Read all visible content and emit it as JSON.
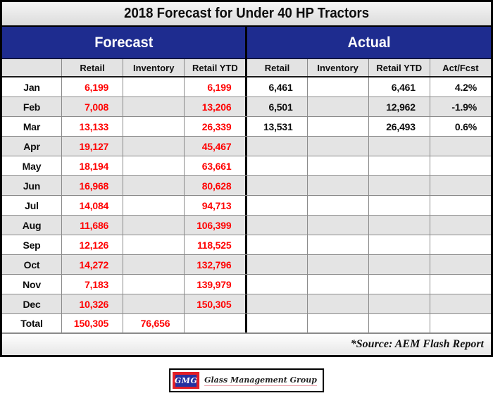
{
  "title": "2018 Forecast for Under 40 HP Tractors",
  "groups": {
    "forecast": "Forecast",
    "actual": "Actual"
  },
  "table": {
    "header": [
      "",
      "Retail",
      "Inventory",
      "Retail YTD",
      "Retail",
      "Inventory",
      "Retail YTD",
      "Act/Fcst"
    ],
    "rows": [
      {
        "cells": [
          "Jan",
          "6,199",
          "",
          "6,199",
          "6,461",
          "",
          "6,461",
          "4.2%"
        ]
      },
      {
        "cells": [
          "Feb",
          "7,008",
          "",
          "13,206",
          "6,501",
          "",
          "12,962",
          "-1.9%"
        ]
      },
      {
        "cells": [
          "Mar",
          "13,133",
          "",
          "26,339",
          "13,531",
          "",
          "26,493",
          "0.6%"
        ]
      },
      {
        "cells": [
          "Apr",
          "19,127",
          "",
          "45,467",
          "",
          "",
          "",
          ""
        ]
      },
      {
        "cells": [
          "May",
          "18,194",
          "",
          "63,661",
          "",
          "",
          "",
          ""
        ]
      },
      {
        "cells": [
          "Jun",
          "16,968",
          "",
          "80,628",
          "",
          "",
          "",
          ""
        ]
      },
      {
        "cells": [
          "Jul",
          "14,084",
          "",
          "94,713",
          "",
          "",
          "",
          ""
        ]
      },
      {
        "cells": [
          "Aug",
          "11,686",
          "",
          "106,399",
          "",
          "",
          "",
          ""
        ]
      },
      {
        "cells": [
          "Sep",
          "12,126",
          "",
          "118,525",
          "",
          "",
          "",
          ""
        ]
      },
      {
        "cells": [
          "Oct",
          "14,272",
          "",
          "132,796",
          "",
          "",
          "",
          ""
        ]
      },
      {
        "cells": [
          "Nov",
          "7,183",
          "",
          "139,979",
          "",
          "",
          "",
          ""
        ]
      },
      {
        "cells": [
          "Dec",
          "10,326",
          "",
          "150,305",
          "",
          "",
          "",
          ""
        ]
      },
      {
        "cells": [
          "Total",
          "150,305",
          "76,656",
          "",
          "",
          "",
          "",
          ""
        ],
        "is_total": true
      }
    ]
  },
  "source_note": "*Source: AEM Flash Report",
  "logo": {
    "abbr": "GMG",
    "name": "Glass Management Group"
  },
  "colors": {
    "header_blue": "#1E2C8F",
    "forecast_red": "#FF0000",
    "row_alt_gray": "#E4E4E4",
    "logo_red": "#E21E26",
    "logo_inner_blue": "#2531A0"
  },
  "chart_data": {
    "type": "table",
    "title": "2018 Forecast for Under 40 HP Tractors",
    "column_groups": [
      {
        "name": "Forecast",
        "columns": [
          "Retail",
          "Inventory",
          "Retail YTD"
        ]
      },
      {
        "name": "Actual",
        "columns": [
          "Retail",
          "Inventory",
          "Retail YTD",
          "Act/Fcst"
        ]
      }
    ],
    "months": [
      "Jan",
      "Feb",
      "Mar",
      "Apr",
      "May",
      "Jun",
      "Jul",
      "Aug",
      "Sep",
      "Oct",
      "Nov",
      "Dec"
    ],
    "forecast_retail": [
      6199,
      7008,
      13133,
      19127,
      18194,
      16968,
      14084,
      11686,
      12126,
      14272,
      7183,
      10326
    ],
    "forecast_retail_ytd": [
      6199,
      13206,
      26339,
      45467,
      63661,
      80628,
      94713,
      106399,
      118525,
      132796,
      139979,
      150305
    ],
    "actual_retail": [
      6461,
      6501,
      13531
    ],
    "actual_retail_ytd": [
      6461,
      12962,
      26493
    ],
    "act_vs_fcst_pct": [
      4.2,
      -1.9,
      0.6
    ],
    "totals": {
      "forecast_retail": 150305,
      "forecast_inventory": 76656
    },
    "source": "*Source: AEM Flash Report"
  }
}
